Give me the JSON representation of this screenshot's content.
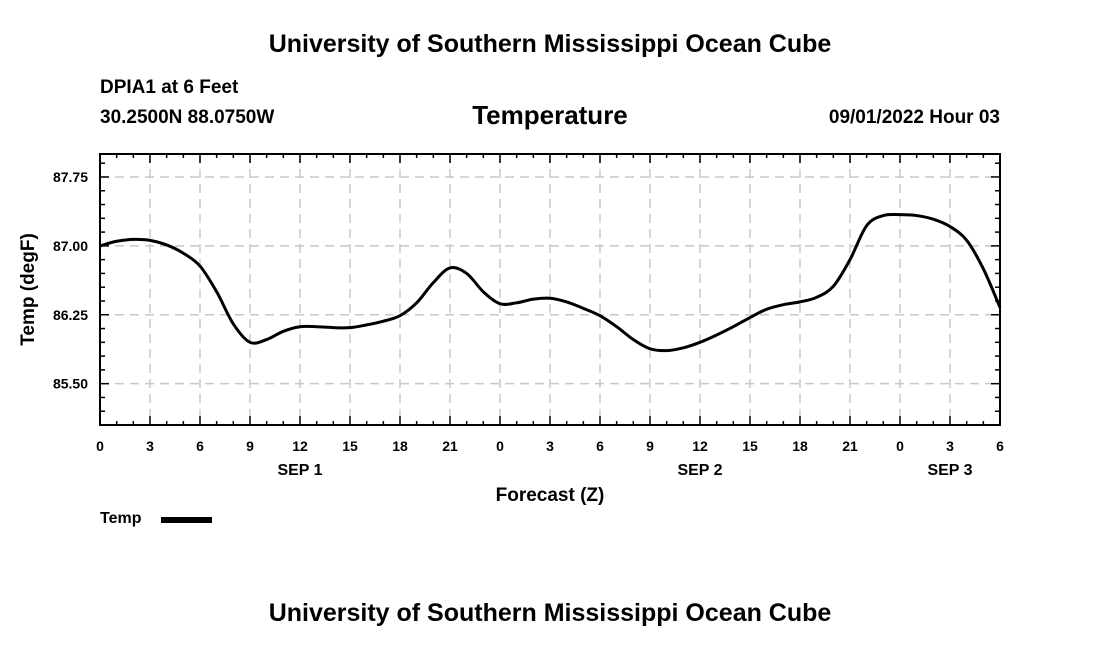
{
  "header": {
    "title": "University of Southern Mississippi Ocean Cube",
    "station": "DPIA1 at 6 Feet",
    "coordinates": "30.2500N  88.0750W",
    "datetime": "09/01/2022 Hour 03"
  },
  "footer": {
    "title": "University of Southern Mississippi Ocean Cube"
  },
  "chart_data": {
    "type": "line",
    "title": "Temperature",
    "xlabel": "Forecast (Z)",
    "ylabel": "Temp (degF)",
    "xlim": [
      0,
      54
    ],
    "ylim": [
      85.05,
      88.0
    ],
    "yticks": [
      85.5,
      86.25,
      87.0,
      87.75
    ],
    "ytick_labels": [
      "85.50",
      "86.25",
      "87.00",
      "87.75"
    ],
    "xticks": [
      0,
      3,
      6,
      9,
      12,
      15,
      18,
      21,
      24,
      27,
      30,
      33,
      36,
      39,
      42,
      45,
      48,
      51,
      54
    ],
    "xtick_labels": [
      "0",
      "3",
      "6",
      "9",
      "12",
      "15",
      "18",
      "21",
      "0",
      "3",
      "6",
      "9",
      "12",
      "15",
      "18",
      "21",
      "0",
      "3",
      "6"
    ],
    "date_labels": [
      {
        "x": 12,
        "label": "SEP 1"
      },
      {
        "x": 36,
        "label": "SEP 2"
      },
      {
        "x": 51,
        "label": "SEP 3"
      }
    ],
    "grid": true,
    "legend_position": "bottom-left",
    "series": [
      {
        "name": "Temp",
        "color": "#000000",
        "x": [
          0,
          1,
          2,
          3,
          4,
          5,
          6,
          7,
          8,
          9,
          10,
          11,
          12,
          13,
          14,
          15,
          16,
          17,
          18,
          19,
          20,
          21,
          22,
          23,
          24,
          25,
          26,
          27,
          28,
          29,
          30,
          31,
          32,
          33,
          34,
          35,
          36,
          37,
          38,
          39,
          40,
          41,
          42,
          43,
          44,
          45,
          46,
          47,
          48,
          49,
          50,
          51,
          52,
          53,
          54
        ],
        "values": [
          87.0,
          87.05,
          87.07,
          87.06,
          87.01,
          86.92,
          86.78,
          86.5,
          86.15,
          85.95,
          85.98,
          86.07,
          86.12,
          86.12,
          86.11,
          86.11,
          86.14,
          86.18,
          86.24,
          86.38,
          86.6,
          86.76,
          86.7,
          86.5,
          86.37,
          86.38,
          86.42,
          86.43,
          86.39,
          86.32,
          86.24,
          86.12,
          85.98,
          85.88,
          85.86,
          85.89,
          85.95,
          86.03,
          86.12,
          86.22,
          86.31,
          86.36,
          86.39,
          86.44,
          86.56,
          86.85,
          87.22,
          87.33,
          87.34,
          87.33,
          87.29,
          87.21,
          87.06,
          86.75,
          86.33
        ]
      }
    ]
  }
}
